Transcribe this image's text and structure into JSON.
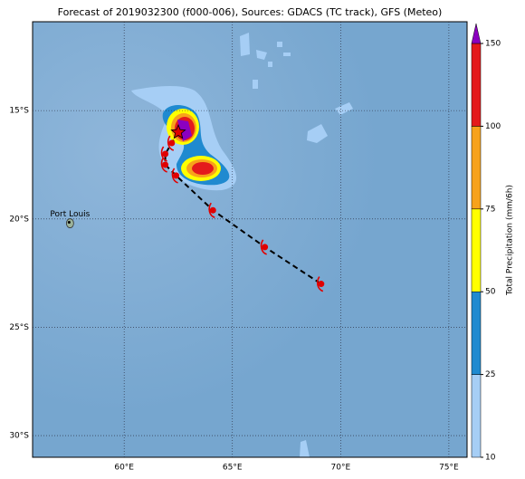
{
  "chart_data": {
    "type": "map",
    "title": "Forecast of 2019032300 (f000-006), Sources: GDACS (TC track), GFS (Meteo)",
    "xlim": [
      55.77,
      75.84
    ],
    "ylim": [
      -31.0,
      -10.9
    ],
    "xticks": [
      {
        "value": 60,
        "label": "60°E"
      },
      {
        "value": 65,
        "label": "65°E"
      },
      {
        "value": 70,
        "label": "70°E"
      },
      {
        "value": 75,
        "label": "75°E"
      }
    ],
    "yticks": [
      {
        "value": -15,
        "label": "15°S"
      },
      {
        "value": -20,
        "label": "20°S"
      },
      {
        "value": -25,
        "label": "25°S"
      },
      {
        "value": -30,
        "label": "30°S"
      }
    ],
    "grid": true,
    "track": {
      "lon": [
        62.5,
        62.2,
        61.9,
        61.9,
        62.4,
        64.1,
        66.5,
        69.1
      ],
      "lat": [
        -16.0,
        -16.5,
        -17.0,
        -17.5,
        -18.0,
        -19.6,
        -21.3,
        -23.0
      ],
      "color": "#e00000"
    },
    "places": [
      {
        "name": "Port Louis",
        "lon": 57.5,
        "lat": -20.2
      }
    ],
    "colorbar": {
      "label": "Total Precipitation (mm/6h)",
      "levels": [
        10,
        25,
        50,
        75,
        100,
        150
      ],
      "colors": [
        "#a6cef5",
        "#1f8ad0",
        "#ffff00",
        "#f7a21b",
        "#e41a1c"
      ],
      "extend_color": "#8b00c0"
    }
  }
}
